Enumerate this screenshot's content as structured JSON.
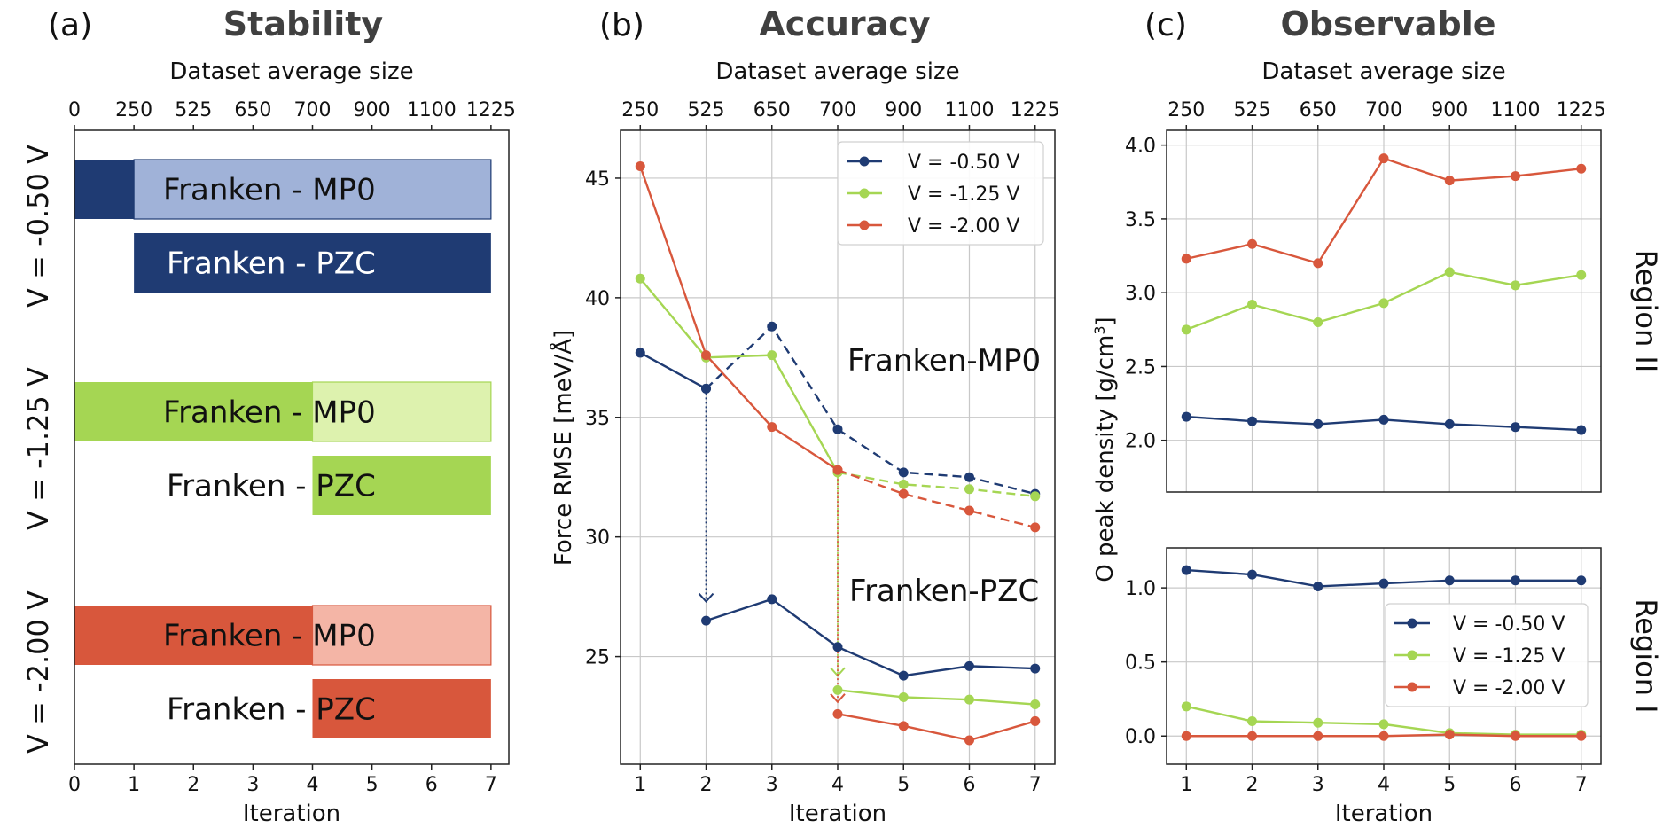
{
  "chart_data": [
    {
      "panel": "(a)",
      "type": "bar",
      "orientation": "horizontal",
      "title": "Stability",
      "xlabel": "Iteration",
      "x2label": "Dataset average size",
      "xlim": [
        0,
        7.3
      ],
      "xticks": [
        0,
        1,
        2,
        3,
        4,
        5,
        6,
        7
      ],
      "x2ticks": [
        {
          "pos": 0,
          "label": "0"
        },
        {
          "pos": 1,
          "label": "250"
        },
        {
          "pos": 2,
          "label": "525"
        },
        {
          "pos": 3,
          "label": "650"
        },
        {
          "pos": 4,
          "label": "700"
        },
        {
          "pos": 5,
          "label": "900"
        },
        {
          "pos": 6,
          "label": "1100"
        },
        {
          "pos": 7,
          "label": "1225"
        }
      ],
      "groups": [
        {
          "label": "V = -0.50 V",
          "dark": "#1f3b73",
          "light": "#a0b2d8",
          "bars": [
            {
              "label": "Franken - MP0",
              "dark_range": [
                0,
                1
              ],
              "light_range": [
                1,
                7
              ]
            },
            {
              "label": "Franken - PZC",
              "dark_range": [
                1,
                7
              ],
              "light_range": null
            }
          ]
        },
        {
          "label": "V = -1.25 V",
          "dark": "#a5d653",
          "light": "#ddf2ae",
          "bars": [
            {
              "label": "Franken - MP0",
              "dark_range": [
                0,
                4
              ],
              "light_range": [
                4,
                7
              ]
            },
            {
              "label": "Franken - PZC",
              "dark_range": [
                4,
                7
              ],
              "light_range": null
            }
          ]
        },
        {
          "label": "V = -2.00 V",
          "dark": "#d8573c",
          "light": "#f4b5a6",
          "bars": [
            {
              "label": "Franken - MP0",
              "dark_range": [
                0,
                4
              ],
              "light_range": [
                4,
                7
              ]
            },
            {
              "label": "Franken - PZC",
              "dark_range": [
                4,
                7
              ],
              "light_range": null
            }
          ]
        }
      ]
    },
    {
      "panel": "(b)",
      "type": "line",
      "title": "Accuracy",
      "xlabel": "Iteration",
      "x2label": "Dataset average size",
      "ylabel": "Force RMSE [meV/Å]",
      "xlim": [
        0.7,
        7.3
      ],
      "ylim": [
        20.5,
        47
      ],
      "xticks": [
        1,
        2,
        3,
        4,
        5,
        6,
        7
      ],
      "x2ticklabels": [
        "250",
        "525",
        "650",
        "700",
        "900",
        "1100",
        "1225"
      ],
      "yticks": [
        25,
        30,
        35,
        40,
        45
      ],
      "series": [
        {
          "name": "V = -0.50 V",
          "color": "#1f3b73",
          "mp0": {
            "x": [
              1,
              2
            ],
            "y": [
              37.7,
              36.2
            ]
          },
          "mp0_dashed": {
            "x": [
              2,
              3,
              4,
              5,
              6,
              7
            ],
            "y": [
              36.2,
              38.8,
              34.5,
              32.7,
              32.5,
              31.8
            ]
          },
          "pzc": {
            "x": [
              2,
              3,
              4,
              5,
              6,
              7
            ],
            "y": [
              26.5,
              27.4,
              25.4,
              24.2,
              24.6,
              24.5
            ]
          },
          "transfer": {
            "x": 2,
            "from": 36.2,
            "to": 27.3
          }
        },
        {
          "name": "V = -1.25 V",
          "color": "#a5d653",
          "mp0": {
            "x": [
              1,
              2,
              3,
              4
            ],
            "y": [
              40.8,
              37.5,
              37.6,
              32.7
            ]
          },
          "mp0_dashed": {
            "x": [
              4,
              5,
              6,
              7
            ],
            "y": [
              32.7,
              32.2,
              32.0,
              31.7
            ]
          },
          "pzc": {
            "x": [
              4,
              5,
              6,
              7
            ],
            "y": [
              23.6,
              23.3,
              23.2,
              23.0
            ]
          },
          "transfer": {
            "x": 4,
            "from": 32.7,
            "to": 24.2
          }
        },
        {
          "name": "V = -2.00 V",
          "color": "#d8573c",
          "mp0": {
            "x": [
              1,
              2,
              3,
              4
            ],
            "y": [
              45.5,
              37.6,
              34.6,
              32.8
            ]
          },
          "mp0_dashed": {
            "x": [
              4,
              5,
              6,
              7
            ],
            "y": [
              32.8,
              31.8,
              31.1,
              30.4
            ]
          },
          "pzc": {
            "x": [
              4,
              5,
              6,
              7
            ],
            "y": [
              22.6,
              22.1,
              21.5,
              22.3
            ]
          },
          "transfer": {
            "x": 4,
            "from": 32.8,
            "to": 23.1
          }
        }
      ],
      "annotations": [
        "Franken-MP0",
        "Franken-PZC"
      ],
      "legend": [
        "V = -0.50 V",
        "V = -1.25 V",
        "V = -2.00 V"
      ]
    },
    {
      "panel": "(c)",
      "type": "line",
      "title": "Observable",
      "xlabel": "Iteration",
      "x2label": "Dataset average size",
      "ylabel": "O peak density [g/cm³]",
      "xticks": [
        1,
        2,
        3,
        4,
        5,
        6,
        7
      ],
      "x2ticklabels": [
        "250",
        "525",
        "650",
        "700",
        "900",
        "1100",
        "1225"
      ],
      "subplots": [
        {
          "region": "Region II",
          "ylim": [
            1.65,
            4.1
          ],
          "yticks": [
            2.0,
            2.5,
            3.0,
            3.5,
            4.0
          ],
          "series": [
            {
              "name": "V = -0.50 V",
              "color": "#1f3b73",
              "y": [
                2.16,
                2.13,
                2.11,
                2.14,
                2.11,
                2.09,
                2.07
              ]
            },
            {
              "name": "V = -1.25 V",
              "color": "#a5d653",
              "y": [
                2.75,
                2.92,
                2.8,
                2.93,
                3.14,
                3.05,
                3.12
              ]
            },
            {
              "name": "V = -2.00 V",
              "color": "#d8573c",
              "y": [
                3.23,
                3.33,
                3.2,
                3.91,
                3.76,
                3.79,
                3.84
              ]
            }
          ]
        },
        {
          "region": "Region I",
          "ylim": [
            -0.19,
            1.27
          ],
          "yticks": [
            0.0,
            0.5,
            1.0
          ],
          "series": [
            {
              "name": "V = -0.50 V",
              "color": "#1f3b73",
              "y": [
                1.12,
                1.09,
                1.01,
                1.03,
                1.05,
                1.05,
                1.05
              ]
            },
            {
              "name": "V = -1.25 V",
              "color": "#a5d653",
              "y": [
                0.2,
                0.1,
                0.09,
                0.08,
                0.02,
                0.01,
                0.01
              ]
            },
            {
              "name": "V = -2.00 V",
              "color": "#d8573c",
              "y": [
                0.0,
                0.0,
                0.0,
                0.0,
                0.01,
                0.0,
                0.0
              ]
            }
          ]
        }
      ],
      "legend": [
        "V = -0.50 V",
        "V = -1.25 V",
        "V = -2.00 V"
      ]
    }
  ]
}
